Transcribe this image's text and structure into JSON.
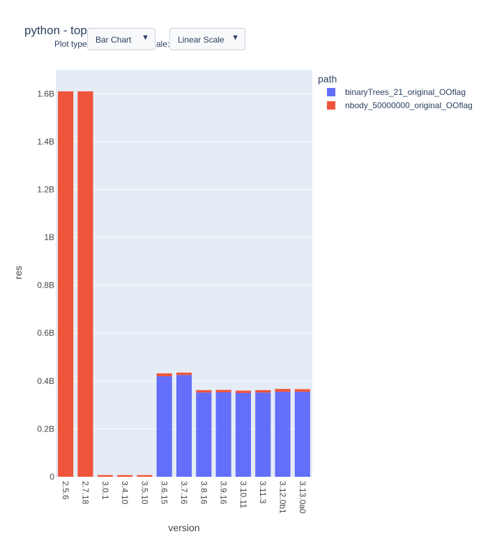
{
  "title": "python - top",
  "controls": {
    "plot_type_label": "Plot type",
    "plot_type_value": "Bar Chart",
    "scale_label": "ale:",
    "scale_value": "Linear Scale"
  },
  "chart_data": {
    "type": "bar",
    "barmode": "stack",
    "xlabel": "version",
    "ylabel": "res",
    "ylim": [
      0,
      1700000000
    ],
    "yticks": [
      0,
      200000000,
      400000000,
      600000000,
      800000000,
      1000000000,
      1200000000,
      1400000000,
      1600000000
    ],
    "ytick_labels": [
      "0",
      "0.2B",
      "0.4B",
      "0.6B",
      "0.8B",
      "1B",
      "1.2B",
      "1.4B",
      "1.6B"
    ],
    "categories": [
      "2.5.6",
      "2.7.18",
      "3.0.1",
      "3.4.10",
      "3.5.10",
      "3.6.15",
      "3.7.16",
      "3.8.16",
      "3.9.16",
      "3.10.11",
      "3.11.3",
      "3.12.0b1",
      "3.13.0a0"
    ],
    "legend_title": "path",
    "legend_position": "top-right",
    "grid": true,
    "series": [
      {
        "name": "binaryTrees_21_original_OOflag",
        "color": "#636efa",
        "values": [
          0,
          0,
          0,
          0,
          0,
          420000000,
          425000000,
          352000000,
          353000000,
          350000000,
          352000000,
          355000000,
          355000000
        ]
      },
      {
        "name": "nbody_50000000_original_OOflag",
        "color": "#ef553b",
        "values": [
          1610000000,
          1610000000,
          7000000,
          7000000,
          7000000,
          12000000,
          10000000,
          10000000,
          10000000,
          10000000,
          10000000,
          12000000,
          11000000
        ]
      }
    ]
  }
}
